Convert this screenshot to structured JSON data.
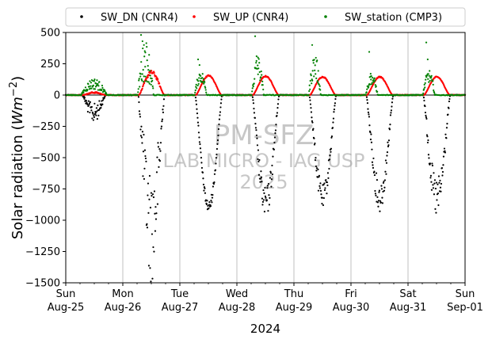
{
  "chart_data": {
    "type": "scatter",
    "xlabel": "2024",
    "ylabel_main": "Solar radiation (",
    "ylabel_unit_base": "Wm",
    "ylabel_unit_exp": "−2",
    "ylabel_close": ")",
    "ylim": [
      -1500,
      500
    ],
    "yticks": [
      -1500,
      -1250,
      -1000,
      -750,
      -500,
      -250,
      0,
      250,
      500
    ],
    "ytick_labels": [
      "−1500",
      "−1250",
      "−1000",
      "−750",
      "−500",
      "−250",
      "0",
      "250",
      "500"
    ],
    "xlim": [
      "2024-08-25",
      "2024-09-01"
    ],
    "xtick_labels": [
      {
        "day": "Sun",
        "date": "Aug-25"
      },
      {
        "day": "Mon",
        "date": "Aug-26"
      },
      {
        "day": "Tue",
        "date": "Aug-27"
      },
      {
        "day": "Wed",
        "date": "Aug-28"
      },
      {
        "day": "Thu",
        "date": "Aug-29"
      },
      {
        "day": "Fri",
        "date": "Aug-30"
      },
      {
        "day": "Sat",
        "date": "Aug-31"
      },
      {
        "day": "Sun",
        "date": "Sep-01"
      }
    ],
    "grid": "vertical, daily",
    "legend_position": "top, outside, 3 columns",
    "series": [
      {
        "name": "SW_DN (CNR4)",
        "color": "#000000",
        "days": [
          {
            "date": "2024-08-25",
            "peak": -145,
            "t_rise": 0.29,
            "t_set": 0.7,
            "noise": 0.55
          },
          {
            "date": "2024-08-26",
            "peak": -1040,
            "t_rise": 0.27,
            "t_set": 0.73,
            "noise": 0.45
          },
          {
            "date": "2024-08-27",
            "peak": -895,
            "t_rise": 0.27,
            "t_set": 0.74,
            "noise": 0.05
          },
          {
            "date": "2024-08-28",
            "peak": -870,
            "t_rise": 0.27,
            "t_set": 0.74,
            "noise": 0.15
          },
          {
            "date": "2024-08-29",
            "peak": -815,
            "t_rise": 0.27,
            "t_set": 0.74,
            "noise": 0.12
          },
          {
            "date": "2024-08-30",
            "peak": -815,
            "t_rise": 0.27,
            "t_set": 0.74,
            "noise": 0.15
          },
          {
            "date": "2024-08-31",
            "peak": -830,
            "t_rise": 0.27,
            "t_set": 0.74,
            "noise": 0.2
          }
        ]
      },
      {
        "name": "SW_UP (CNR4)",
        "color": "#ff0000",
        "days": [
          {
            "date": "2024-08-25",
            "peak": 20,
            "t_rise": 0.3,
            "t_set": 0.7,
            "noise": 0.3
          },
          {
            "date": "2024-08-26",
            "peak": 180,
            "t_rise": 0.28,
            "t_set": 0.73,
            "noise": 0.1
          },
          {
            "date": "2024-08-27",
            "peak": 155,
            "t_rise": 0.28,
            "t_set": 0.73,
            "noise": 0.03
          },
          {
            "date": "2024-08-28",
            "peak": 150,
            "t_rise": 0.28,
            "t_set": 0.73,
            "noise": 0.03
          },
          {
            "date": "2024-08-29",
            "peak": 145,
            "t_rise": 0.28,
            "t_set": 0.73,
            "noise": 0.03
          },
          {
            "date": "2024-08-30",
            "peak": 145,
            "t_rise": 0.28,
            "t_set": 0.73,
            "noise": 0.03
          },
          {
            "date": "2024-08-31",
            "peak": 145,
            "t_rise": 0.28,
            "t_set": 0.73,
            "noise": 0.03
          }
        ]
      },
      {
        "name": "SW_station (CMP3)",
        "color": "#008000",
        "days": [
          {
            "date": "2024-08-25",
            "peak": 90,
            "t_rise": 0.27,
            "t_set": 0.72,
            "noise": 0.5
          },
          {
            "date": "2024-08-26",
            "peak": 280,
            "t_rise": 0.26,
            "t_set": 0.54,
            "noise": 0.6,
            "outliers": [
              480,
              430,
              400,
              340
            ]
          },
          {
            "date": "2024-08-27",
            "peak": 150,
            "t_rise": 0.26,
            "t_set": 0.47,
            "noise": 0.35,
            "outliers": [
              285,
              240
            ]
          },
          {
            "date": "2024-08-28",
            "peak": 220,
            "t_rise": 0.26,
            "t_set": 0.47,
            "noise": 0.45,
            "outliers": [
              470,
              310,
              300
            ]
          },
          {
            "date": "2024-08-29",
            "peak": 230,
            "t_rise": 0.26,
            "t_set": 0.47,
            "noise": 0.45,
            "outliers": [
              400,
              280
            ]
          },
          {
            "date": "2024-08-30",
            "peak": 130,
            "t_rise": 0.26,
            "t_set": 0.47,
            "noise": 0.35,
            "outliers": [
              345,
              170
            ]
          },
          {
            "date": "2024-08-31",
            "peak": 150,
            "t_rise": 0.26,
            "t_set": 0.47,
            "noise": 0.35,
            "outliers": [
              420,
              285
            ]
          }
        ]
      }
    ]
  },
  "watermark": {
    "line1": "PM-SFZ",
    "line2": "LAB MICRO - IAG USP",
    "line3": "2025"
  }
}
